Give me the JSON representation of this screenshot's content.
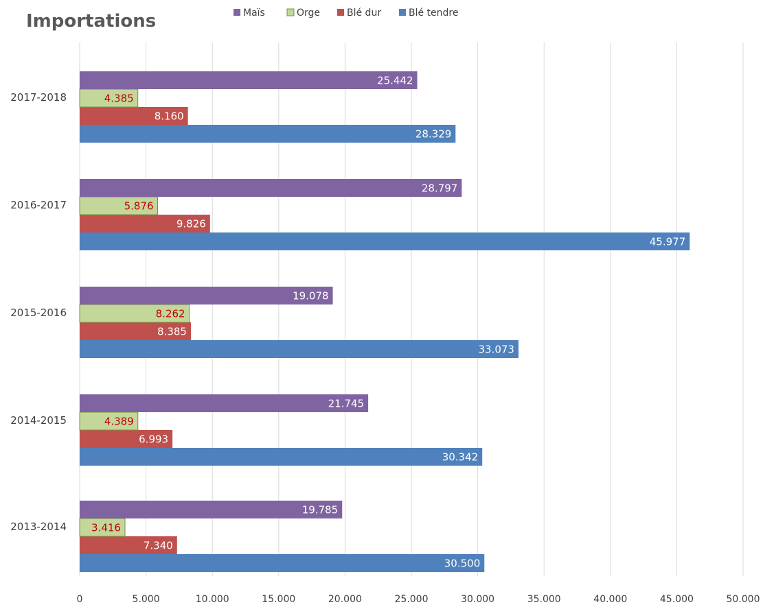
{
  "chart_data": {
    "type": "bar",
    "orientation": "horizontal",
    "title": "Importations",
    "categories": [
      "2013-2014",
      "2014-2015",
      "2015-2016",
      "2016-2017",
      "2017-2018"
    ],
    "series": [
      {
        "name": "Blé tendre",
        "color": "#4f81bd",
        "label_color": "#ffffff",
        "values": [
          30500,
          30342,
          33073,
          45977,
          28329
        ],
        "labels": [
          "30.500",
          "30.342",
          "33.073",
          "45.977",
          "28.329"
        ]
      },
      {
        "name": "Blé dur",
        "color": "#c0504d",
        "label_color": "#ffffff",
        "values": [
          7340,
          6993,
          8385,
          9826,
          8160
        ],
        "labels": [
          "7.340",
          "6.993",
          "8.385",
          "9.826",
          "8.160"
        ]
      },
      {
        "name": "Orge",
        "color": "#c4d79b",
        "border_color": "#77933c",
        "label_color": "#c00000",
        "values": [
          3416,
          4389,
          8262,
          5876,
          4385
        ],
        "labels": [
          "3.416",
          "4.389",
          "8.262",
          "5.876",
          "4.385"
        ]
      },
      {
        "name": "Maïs",
        "color": "#8064a2",
        "label_color": "#ffffff",
        "values": [
          19785,
          21745,
          19078,
          28797,
          25442
        ],
        "labels": [
          "19.785",
          "21.745",
          "19.078",
          "28.797",
          "25.442"
        ]
      }
    ],
    "legend_order": [
      "Maïs",
      "Orge",
      "Blé dur",
      "Blé tendre"
    ],
    "legend_position": "top",
    "xlim": [
      0,
      50000
    ],
    "x_ticks": [
      0,
      5000,
      10000,
      15000,
      20000,
      25000,
      30000,
      35000,
      40000,
      45000,
      50000
    ],
    "x_tick_labels": [
      "0",
      "5.000",
      "10.000",
      "15.000",
      "20.000",
      "25.000",
      "30.000",
      "35.000",
      "40.000",
      "45.000",
      "50.000"
    ],
    "grid": "vertical",
    "grid_color": "#d9d9d9"
  }
}
